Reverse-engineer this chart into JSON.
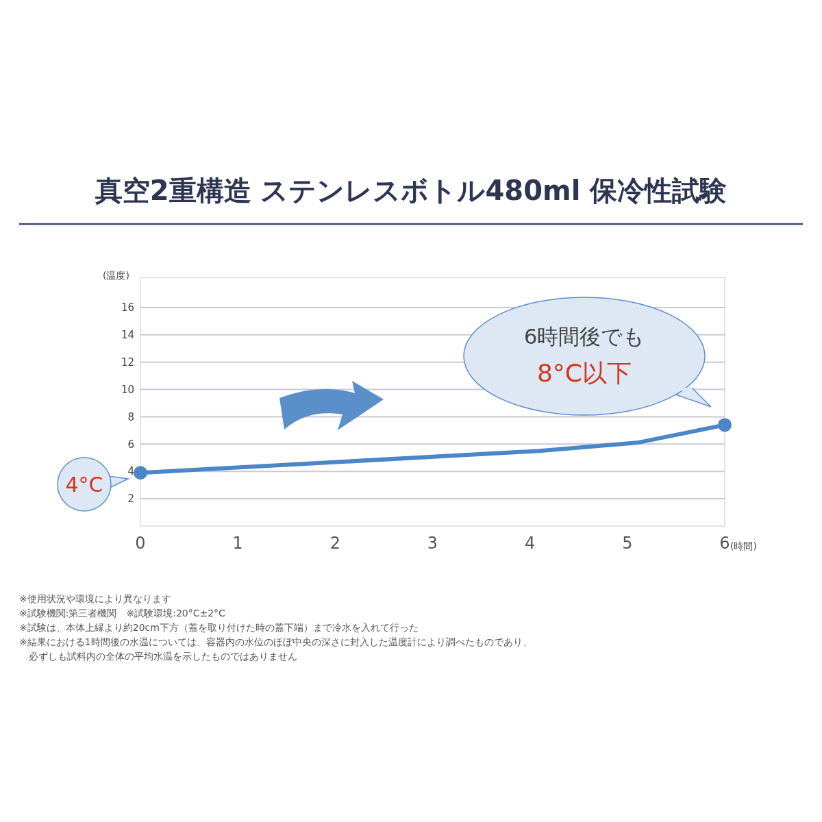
{
  "chart_data": {
    "type": "line",
    "title": "真空2重構造 ステンレスボトル480ml 保冷性試験",
    "xlabel": "(時間)",
    "ylabel": "(温度)",
    "series": [
      {
        "color": "#4a86c8",
        "x": [
          0,
          4.1,
          5.1,
          6
        ],
        "values": [
          3.9,
          5.5,
          6.1,
          7.4
        ]
      }
    ],
    "xlim": [
      0,
      6
    ],
    "xticks": [
      0,
      1,
      2,
      3,
      4,
      5,
      6
    ],
    "ylim": [
      0,
      18.2
    ],
    "yticks": [
      2,
      4,
      6,
      8,
      10,
      12,
      14,
      16
    ],
    "grid": "y",
    "marker": "circle",
    "line_style": "solid",
    "annotations": [
      "4°C",
      "6時間後でも",
      "8°C以下",
      "※使用状況や環境により異なります",
      "※試験機関:第三者機関　※試験環境:20°C±2°C",
      "※試験は、本体上縁より約20cm下方（蓋を取り付けた時の蓋下端）まで冷水を入れて行った",
      "※結果における1時間後の水温については、容器内の水位のほぼ中央の深さに封入した温度計により調べたものであり、",
      "　必ずしも試料内の全体の平均水温を示したものではありません"
    ]
  }
}
